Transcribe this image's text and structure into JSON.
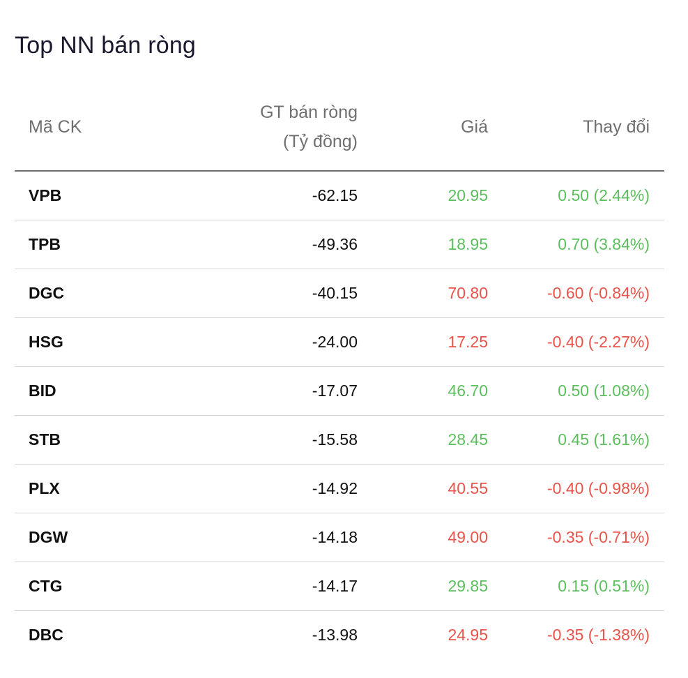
{
  "title": "Top NN bán ròng",
  "columns": {
    "symbol": "Mã CK",
    "value_line1": "GT bán ròng",
    "value_line2": "(Tỷ đồng)",
    "price": "Giá",
    "change": "Thay đổi"
  },
  "colors": {
    "up": "#5cbf5e",
    "down": "#e8534a"
  },
  "rows": [
    {
      "symbol": "VPB",
      "value": "-62.15",
      "price": "20.95",
      "change": "0.50 (2.44%)",
      "trend": "up"
    },
    {
      "symbol": "TPB",
      "value": "-49.36",
      "price": "18.95",
      "change": "0.70 (3.84%)",
      "trend": "up"
    },
    {
      "symbol": "DGC",
      "value": "-40.15",
      "price": "70.80",
      "change": "-0.60 (-0.84%)",
      "trend": "down"
    },
    {
      "symbol": "HSG",
      "value": "-24.00",
      "price": "17.25",
      "change": "-0.40 (-2.27%)",
      "trend": "down"
    },
    {
      "symbol": "BID",
      "value": "-17.07",
      "price": "46.70",
      "change": "0.50 (1.08%)",
      "trend": "up"
    },
    {
      "symbol": "STB",
      "value": "-15.58",
      "price": "28.45",
      "change": "0.45 (1.61%)",
      "trend": "up"
    },
    {
      "symbol": "PLX",
      "value": "-14.92",
      "price": "40.55",
      "change": "-0.40 (-0.98%)",
      "trend": "down"
    },
    {
      "symbol": "DGW",
      "value": "-14.18",
      "price": "49.00",
      "change": "-0.35 (-0.71%)",
      "trend": "down"
    },
    {
      "symbol": "CTG",
      "value": "-14.17",
      "price": "29.85",
      "change": "0.15 (0.51%)",
      "trend": "up"
    },
    {
      "symbol": "DBC",
      "value": "-13.98",
      "price": "24.95",
      "change": "-0.35 (-1.38%)",
      "trend": "down"
    }
  ]
}
